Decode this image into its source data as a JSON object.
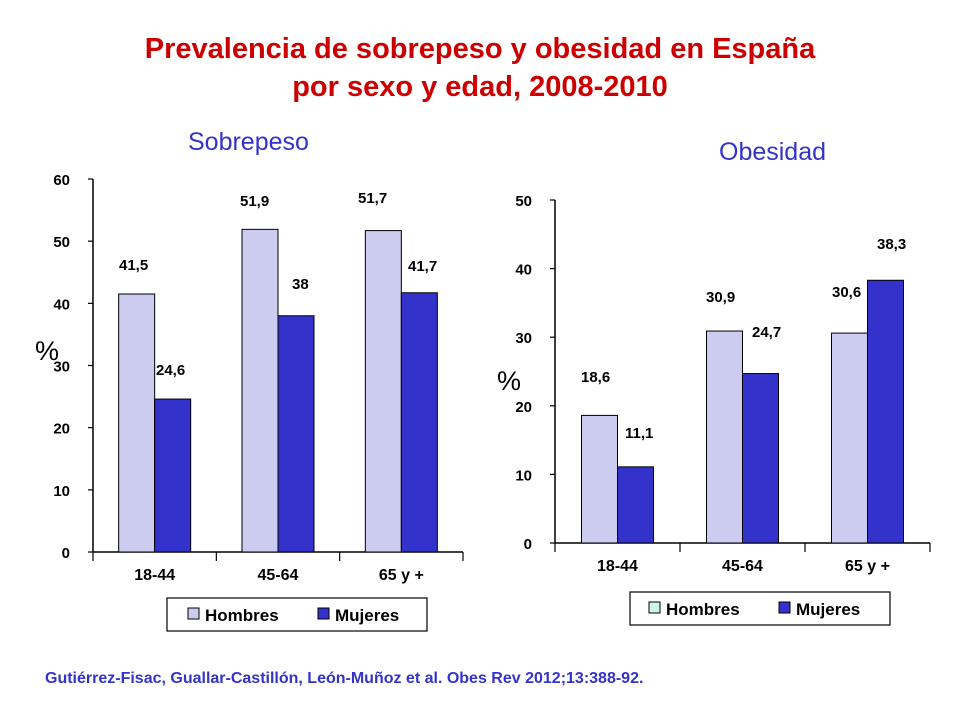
{
  "title": "Prevalencia de sobrepeso y obesidad en España",
  "title_line2": "por sexo y edad, 2008-2010",
  "citation": "Gutiérrez-Fisac, Guallar-Castillón, León-Muñoz et al. Obes Rev 2012;13:388-92.",
  "colors": {
    "hombres": "#ccccf0",
    "mujeres": "#3333cc",
    "hombres_legend_right": "#ccf5f0",
    "title": "#cc0000",
    "text_blue": "#3333cc"
  },
  "chart_data": [
    {
      "type": "bar",
      "title": "Sobrepeso",
      "ylabel": "%",
      "ylim": [
        0,
        60
      ],
      "yticks": [
        0,
        10,
        20,
        30,
        40,
        50,
        60
      ],
      "categories": [
        "18-44",
        "45-64",
        "65 y +"
      ],
      "series": [
        {
          "name": "Hombres",
          "values": [
            41.5,
            51.9,
            51.7
          ],
          "labels": [
            "41,5",
            "51,9",
            "51,7"
          ]
        },
        {
          "name": "Mujeres",
          "values": [
            24.6,
            38,
            41.7
          ],
          "labels": [
            "24,6",
            "38",
            "41,7"
          ]
        }
      ],
      "legend": "bottom"
    },
    {
      "type": "bar",
      "title": "Obesidad",
      "ylabel": "%",
      "ylim": [
        0,
        50
      ],
      "yticks": [
        0,
        10,
        20,
        30,
        40,
        50
      ],
      "categories": [
        "18-44",
        "45-64",
        "65 y +"
      ],
      "series": [
        {
          "name": "Hombres",
          "values": [
            18.6,
            30.9,
            30.6
          ],
          "labels": [
            "18,6",
            "30,9",
            "30,6"
          ]
        },
        {
          "name": "Mujeres",
          "values": [
            11.1,
            24.7,
            38.3
          ],
          "labels": [
            "11,1",
            "24,7",
            "38,3"
          ]
        }
      ],
      "legend": "bottom"
    }
  ]
}
